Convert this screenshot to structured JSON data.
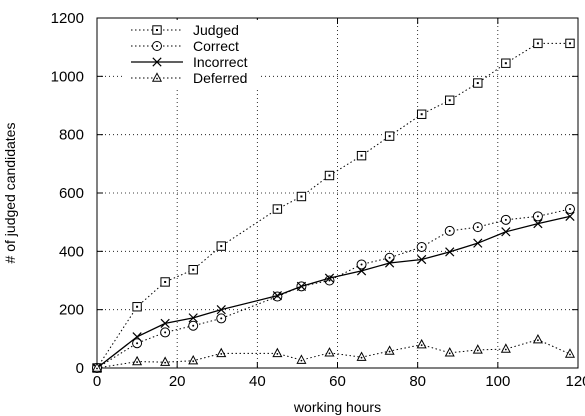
{
  "chart_data": {
    "type": "line",
    "title": "",
    "xlabel": "working hours",
    "ylabel": "# of judged candidates",
    "xlim": [
      0,
      120
    ],
    "ylim": [
      0,
      1200
    ],
    "xticks": [
      0,
      20,
      40,
      60,
      80,
      100,
      120
    ],
    "yticks": [
      0,
      200,
      400,
      600,
      800,
      1000,
      1200
    ],
    "grid": "dotted horizontal and vertical lines at each tick",
    "legend": "top-left",
    "series": [
      {
        "name": "Judged",
        "marker": "square",
        "line": "dotted",
        "x": [
          0,
          10,
          17,
          24,
          31,
          45,
          51,
          58,
          66,
          73,
          81,
          88,
          95,
          102,
          110,
          118
        ],
        "y": [
          0,
          210,
          295,
          337,
          418,
          545,
          588,
          660,
          728,
          795,
          870,
          918,
          977,
          1045,
          1113,
          1113
        ]
      },
      {
        "name": "Correct",
        "marker": "circle",
        "line": "dotted",
        "x": [
          0,
          10,
          17,
          24,
          31,
          45,
          51,
          58,
          66,
          73,
          81,
          88,
          95,
          102,
          110,
          118
        ],
        "y": [
          0,
          85,
          122,
          145,
          170,
          245,
          280,
          300,
          355,
          378,
          415,
          470,
          483,
          508,
          520,
          545
        ]
      },
      {
        "name": "Incorrect",
        "marker": "x",
        "line": "solid",
        "x": [
          0,
          10,
          17,
          24,
          31,
          45,
          51,
          58,
          66,
          73,
          81,
          88,
          95,
          102,
          110,
          118
        ],
        "y": [
          0,
          107,
          153,
          172,
          200,
          248,
          280,
          308,
          333,
          360,
          372,
          398,
          428,
          467,
          495,
          520
        ]
      },
      {
        "name": "Deferred",
        "marker": "triangle",
        "line": "dotted",
        "x": [
          0,
          10,
          17,
          24,
          31,
          45,
          51,
          58,
          66,
          73,
          81,
          88,
          95,
          102,
          110,
          118
        ],
        "y": [
          0,
          22,
          20,
          25,
          50,
          50,
          27,
          52,
          37,
          58,
          80,
          52,
          62,
          65,
          97,
          48
        ]
      }
    ]
  }
}
